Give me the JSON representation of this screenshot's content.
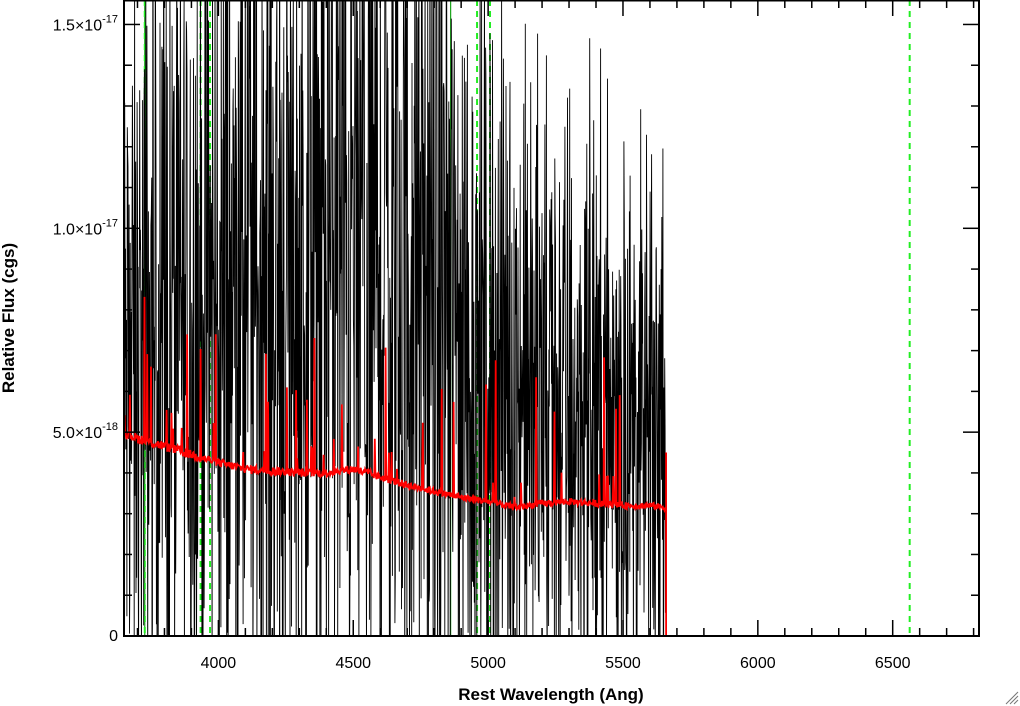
{
  "chart_data": {
    "type": "line",
    "title": "",
    "xlabel": "Rest Wavelength (Ang)",
    "ylabel": "Relative Flux (cgs)",
    "xlim": [
      3650,
      6820
    ],
    "ylim": [
      0,
      1.56e-17
    ],
    "grid": false,
    "x_ticks": [
      4000,
      4500,
      5000,
      5500,
      6000,
      6500
    ],
    "x_tick_labels": [
      "4000",
      "4500",
      "5000",
      "5500",
      "6000",
      "6500"
    ],
    "y_ticks": [
      {
        "value": 0,
        "mantissa": "0",
        "exponent": ""
      },
      {
        "value": 5e-18,
        "mantissa": "5.0×10",
        "exponent": "-18"
      },
      {
        "value": 1e-17,
        "mantissa": "1.0×10",
        "exponent": "-17"
      },
      {
        "value": 1.5e-17,
        "mantissa": "1.5×10",
        "exponent": "-17"
      }
    ],
    "reference_lines": {
      "solid_green": [
        3727,
        4861
      ],
      "dashed_green": [
        3727,
        3934,
        3969,
        4959,
        5007,
        6563
      ],
      "solid_black": [
        4227
      ]
    },
    "series": [
      {
        "style": "observed-spectrum",
        "color": "#000000",
        "x": [
          3650,
          3700,
          3750,
          3800,
          3850,
          3900,
          3950,
          4000,
          4050,
          4100,
          4150,
          4200,
          4250,
          4300,
          4350,
          4400,
          4450,
          4500,
          4550,
          4600,
          4650,
          4700,
          4750,
          4800,
          4850,
          4900,
          4950,
          5000,
          5050,
          5100,
          5150,
          5200,
          5250,
          5300,
          5350,
          5400,
          5450,
          5500,
          5550,
          5600,
          5660
        ],
        "y": [
          6.2e-18,
          6.5e-18,
          7e-18,
          7.3e-18,
          7.6e-18,
          7.8e-18,
          7.9e-18,
          8e-18,
          8.2e-18,
          8.4e-18,
          8.6e-18,
          8.6e-18,
          8.5e-18,
          8.7e-18,
          8.9e-18,
          9.1e-18,
          9.3e-18,
          9.2e-18,
          9.1e-18,
          9e-18,
          8.8e-18,
          8.6e-18,
          8.3e-18,
          8e-18,
          7.6e-18,
          7.1e-18,
          6.7e-18,
          6.5e-18,
          6.3e-18,
          6.1e-18,
          5.9e-18,
          5.8e-18,
          5.7e-18,
          5.6e-18,
          5.5e-18,
          5.4e-18,
          5.2e-18,
          5e-18,
          4.8e-18,
          4.6e-18,
          4.4e-18
        ]
      },
      {
        "style": "model-continuum",
        "color": "#ff0000",
        "x": [
          3650,
          3700,
          3800,
          3900,
          4000,
          4100,
          4200,
          4300,
          4400,
          4500,
          4600,
          4700,
          4800,
          4900,
          5000,
          5100,
          5200,
          5300,
          5400,
          5500,
          5600,
          5660,
          5661,
          6820
        ],
        "y": [
          5e-18,
          4.85e-18,
          4.65e-18,
          4.45e-18,
          4.25e-18,
          4.1e-18,
          4.05e-18,
          4e-18,
          4e-18,
          4.1e-18,
          3.9e-18,
          3.7e-18,
          3.55e-18,
          3.4e-18,
          3.3e-18,
          3.15e-18,
          3.25e-18,
          3.3e-18,
          3.25e-18,
          3.2e-18,
          3.2e-18,
          3.15e-18,
          0,
          0
        ]
      }
    ]
  }
}
